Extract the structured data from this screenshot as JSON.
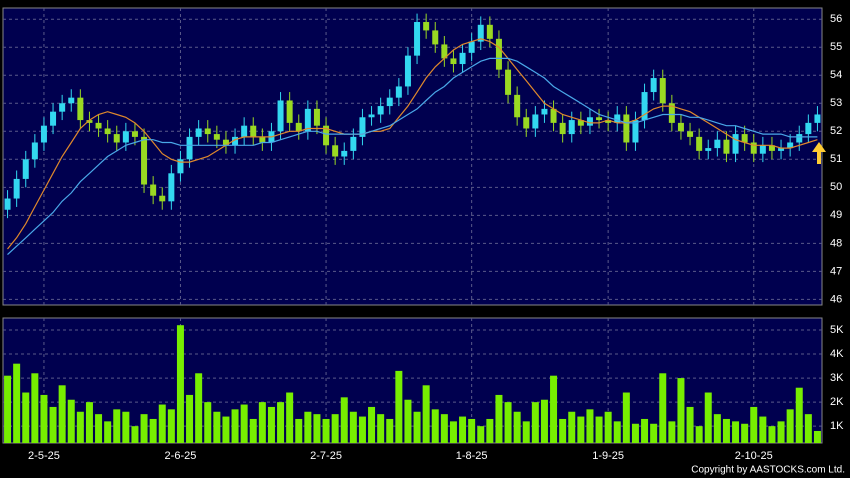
{
  "chart_data": [
    {
      "type": "candlestick",
      "categories": [
        null,
        null,
        null,
        null,
        "2-5-25",
        null,
        null,
        null,
        null,
        null,
        null,
        null,
        null,
        null,
        null,
        null,
        null,
        null,
        null,
        "2-6-25",
        null,
        null,
        null,
        null,
        null,
        null,
        null,
        null,
        null,
        null,
        null,
        null,
        null,
        null,
        null,
        "2-7-25",
        null,
        null,
        null,
        null,
        null,
        null,
        null,
        null,
        null,
        null,
        null,
        null,
        null,
        null,
        null,
        "1-8-25",
        null,
        null,
        null,
        null,
        null,
        null,
        null,
        null,
        null,
        null,
        null,
        null,
        null,
        null,
        "1-9-25",
        null,
        null,
        null,
        null,
        null,
        null,
        null,
        null,
        null,
        null,
        null,
        null,
        null,
        null,
        null,
        "2-10-25",
        null,
        null,
        null,
        null,
        null,
        null,
        null
      ],
      "open": [
        49.2,
        49.6,
        50.3,
        51.0,
        51.6,
        52.2,
        52.7,
        53.0,
        53.2,
        52.4,
        52.3,
        52.1,
        51.9,
        51.6,
        52.0,
        51.8,
        50.1,
        49.7,
        49.5,
        50.5,
        51.0,
        51.8,
        52.1,
        51.9,
        51.7,
        51.5,
        51.8,
        52.2,
        51.8,
        51.6,
        52.0,
        53.1,
        52.3,
        52.0,
        52.8,
        52.2,
        51.5,
        51.1,
        51.3,
        51.8,
        52.5,
        52.6,
        52.9,
        53.2,
        53.6,
        54.7,
        55.9,
        55.6,
        55.1,
        54.6,
        54.4,
        54.8,
        55.2,
        55.8,
        55.3,
        54.2,
        53.3,
        52.5,
        52.1,
        52.6,
        52.8,
        52.3,
        51.9,
        52.4,
        52.2,
        52.5,
        52.4,
        52.3,
        52.6,
        51.6,
        52.4,
        53.4,
        53.9,
        53.0,
        52.3,
        52.0,
        51.8,
        51.3,
        51.4,
        51.7,
        51.2,
        51.9,
        51.6,
        51.2,
        51.5,
        51.3,
        51.4,
        51.6,
        51.9,
        52.3
      ],
      "high": [
        49.9,
        50.6,
        51.3,
        51.9,
        52.5,
        53.0,
        53.3,
        53.5,
        53.5,
        52.7,
        52.6,
        52.4,
        52.2,
        52.3,
        52.3,
        52.1,
        50.4,
        50.0,
        50.8,
        51.3,
        52.1,
        52.4,
        52.4,
        52.2,
        52.0,
        52.1,
        52.5,
        52.5,
        52.1,
        52.3,
        53.4,
        53.4,
        52.6,
        53.1,
        53.1,
        52.5,
        51.8,
        51.6,
        52.1,
        52.8,
        52.9,
        53.2,
        53.5,
        53.9,
        55.0,
        56.2,
        56.2,
        55.9,
        55.4,
        54.9,
        55.1,
        55.5,
        56.1,
        56.1,
        55.6,
        54.5,
        53.6,
        52.8,
        52.9,
        53.1,
        53.1,
        52.6,
        52.7,
        52.7,
        52.8,
        52.8,
        52.7,
        52.9,
        52.9,
        52.7,
        53.7,
        54.2,
        54.2,
        53.3,
        52.6,
        52.3,
        52.1,
        51.7,
        52.0,
        52.0,
        52.2,
        52.2,
        51.9,
        51.8,
        51.8,
        51.7,
        51.9,
        52.2,
        52.6,
        52.9
      ],
      "low": [
        48.9,
        49.3,
        50.0,
        50.7,
        51.3,
        51.9,
        52.4,
        52.7,
        52.1,
        52.0,
        51.8,
        51.6,
        51.3,
        51.3,
        51.5,
        49.8,
        49.4,
        49.2,
        49.2,
        50.2,
        50.7,
        51.5,
        51.6,
        51.4,
        51.2,
        51.2,
        51.5,
        51.5,
        51.3,
        51.3,
        51.7,
        52.0,
        51.7,
        51.7,
        51.9,
        51.2,
        50.8,
        50.8,
        51.0,
        51.5,
        52.2,
        52.3,
        52.6,
        52.9,
        53.3,
        54.4,
        55.3,
        54.8,
        54.3,
        54.1,
        54.1,
        54.5,
        54.9,
        55.0,
        53.9,
        53.0,
        52.2,
        51.8,
        51.8,
        52.3,
        52.0,
        51.6,
        51.6,
        51.9,
        51.9,
        52.1,
        52.0,
        52.0,
        51.3,
        51.3,
        52.1,
        53.1,
        52.7,
        52.0,
        51.7,
        51.5,
        51.0,
        51.0,
        51.1,
        50.9,
        50.9,
        51.3,
        50.9,
        50.9,
        51.0,
        51.0,
        51.1,
        51.3,
        51.6,
        52.0
      ],
      "close": [
        49.6,
        50.3,
        51.0,
        51.6,
        52.2,
        52.7,
        53.0,
        53.2,
        52.4,
        52.3,
        52.1,
        51.9,
        51.6,
        52.0,
        51.8,
        50.1,
        49.7,
        49.5,
        50.5,
        51.0,
        51.8,
        52.1,
        51.9,
        51.7,
        51.5,
        51.8,
        52.2,
        51.8,
        51.6,
        52.0,
        53.1,
        52.3,
        52.0,
        52.8,
        52.2,
        51.5,
        51.1,
        51.3,
        51.8,
        52.5,
        52.6,
        52.9,
        53.2,
        53.6,
        54.7,
        55.9,
        55.6,
        55.1,
        54.6,
        54.4,
        54.8,
        55.2,
        55.8,
        55.3,
        54.2,
        53.3,
        52.5,
        52.1,
        52.6,
        52.8,
        52.3,
        51.9,
        52.4,
        52.2,
        52.5,
        52.4,
        52.3,
        52.6,
        51.6,
        52.4,
        53.4,
        53.9,
        53.0,
        52.3,
        52.0,
        51.8,
        51.3,
        51.4,
        51.7,
        51.2,
        51.9,
        51.6,
        51.2,
        51.5,
        51.3,
        51.4,
        51.6,
        51.9,
        52.3,
        52.6
      ],
      "up_color": "#33d8f0",
      "down_color": "#9ad922",
      "series": [
        {
          "color": "#e0892c",
          "values": [
            47.8,
            48.2,
            48.7,
            49.3,
            49.9,
            50.5,
            51.1,
            51.6,
            52.1,
            52.4,
            52.6,
            52.7,
            52.6,
            52.5,
            52.3,
            52.0,
            51.6,
            51.2,
            51.0,
            50.9,
            50.9,
            51.0,
            51.1,
            51.3,
            51.5,
            51.7,
            51.8,
            51.8,
            51.8,
            51.8,
            51.9,
            52.0,
            52.0,
            52.1,
            52.1,
            52.1,
            52.0,
            51.9,
            51.9,
            51.9,
            52.0,
            52.0,
            52.1,
            52.5,
            52.9,
            53.4,
            53.9,
            54.3,
            54.6,
            54.9,
            55.1,
            55.2,
            55.3,
            55.2,
            55.0,
            54.6,
            54.2,
            53.8,
            53.4,
            53.0,
            52.8,
            52.6,
            52.5,
            52.4,
            52.3,
            52.3,
            52.4,
            52.3,
            52.3,
            52.4,
            52.6,
            52.8,
            52.9,
            52.9,
            52.8,
            52.7,
            52.5,
            52.3,
            52.1,
            51.9,
            51.7,
            51.6,
            51.5,
            51.5,
            51.5,
            51.4,
            51.4,
            51.5,
            51.6,
            51.7
          ]
        },
        {
          "color": "#4aa8e8",
          "values": [
            47.6,
            47.9,
            48.2,
            48.5,
            48.8,
            49.1,
            49.5,
            49.8,
            50.2,
            50.5,
            50.8,
            51.1,
            51.3,
            51.5,
            51.6,
            51.7,
            51.7,
            51.6,
            51.6,
            51.5,
            51.5,
            51.5,
            51.5,
            51.5,
            51.5,
            51.5,
            51.5,
            51.5,
            51.6,
            51.6,
            51.7,
            51.8,
            51.9,
            52.0,
            52.0,
            51.9,
            51.9,
            51.9,
            51.9,
            51.9,
            52.0,
            52.1,
            52.2,
            52.4,
            52.6,
            52.8,
            53.1,
            53.4,
            53.6,
            53.9,
            54.1,
            54.3,
            54.5,
            54.6,
            54.6,
            54.6,
            54.5,
            54.3,
            54.1,
            53.9,
            53.6,
            53.4,
            53.2,
            53.0,
            52.8,
            52.6,
            52.5,
            52.4,
            52.3,
            52.3,
            52.4,
            52.5,
            52.6,
            52.6,
            52.6,
            52.5,
            52.5,
            52.4,
            52.3,
            52.2,
            52.2,
            52.1,
            52.0,
            51.9,
            51.9,
            51.9,
            51.8,
            51.8,
            51.8,
            51.8
          ]
        }
      ],
      "ylim": [
        45.8,
        56.4
      ],
      "yticks": [
        46,
        47,
        48,
        49,
        50,
        51,
        52,
        53,
        54,
        55,
        56
      ],
      "grid": true,
      "credit": "Copyright by AASTOCKS.com Ltd."
    },
    {
      "type": "bar",
      "color": "#77ee00",
      "values": [
        3.1,
        3.6,
        2.4,
        3.2,
        2.3,
        1.8,
        2.7,
        2.1,
        1.6,
        2.0,
        1.5,
        1.2,
        1.7,
        1.6,
        1.0,
        1.5,
        1.3,
        1.9,
        1.7,
        5.2,
        2.3,
        3.2,
        2.0,
        1.6,
        1.4,
        1.7,
        1.9,
        1.3,
        2.0,
        1.8,
        2.0,
        2.4,
        1.3,
        1.6,
        1.5,
        1.3,
        1.5,
        2.2,
        1.6,
        1.4,
        1.8,
        1.5,
        1.3,
        3.3,
        2.1,
        1.6,
        2.7,
        1.7,
        1.5,
        1.2,
        1.4,
        1.3,
        1.0,
        1.3,
        2.3,
        2.0,
        1.6,
        1.2,
        2.0,
        2.1,
        3.1,
        1.3,
        1.6,
        1.4,
        1.7,
        1.4,
        1.6,
        1.2,
        2.4,
        1.1,
        1.3,
        1.1,
        3.2,
        1.2,
        3.0,
        1.8,
        1.0,
        2.4,
        1.5,
        1.3,
        1.2,
        1.1,
        1.8,
        1.4,
        1.0,
        1.2,
        1.7,
        2.6,
        1.5,
        0.8
      ],
      "ylim": [
        0.3,
        5.5
      ],
      "yticks": [
        {
          "value": 1,
          "label": "1K"
        },
        {
          "value": 2,
          "label": "2K"
        },
        {
          "value": 3,
          "label": "3K"
        },
        {
          "value": 4,
          "label": "4K"
        },
        {
          "value": 5,
          "label": "5K"
        }
      ],
      "grid": true
    }
  ]
}
